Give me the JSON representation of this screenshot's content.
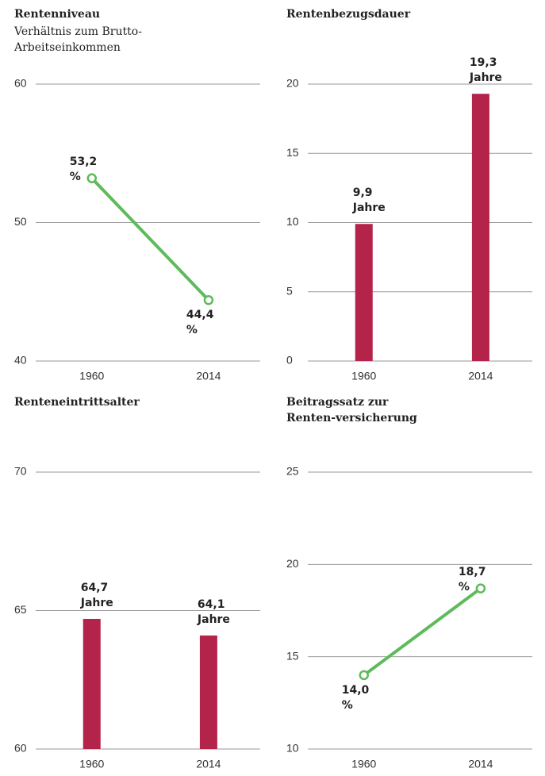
{
  "chart_data": [
    {
      "type": "line",
      "title": "Rentenniveau",
      "subtitle": "Verhältnis zum Brutto-Arbeitseinkommen",
      "categories": [
        "1960",
        "2014"
      ],
      "values": [
        53.2,
        44.4
      ],
      "value_labels": [
        "53,2 %",
        "44,4 %"
      ],
      "color": "#5dbb5a",
      "ylim": [
        40,
        60
      ],
      "yticks": [
        40,
        50,
        60
      ],
      "grid": true
    },
    {
      "type": "bar",
      "title": "Rentenbezugsdauer",
      "categories": [
        "1960",
        "2014"
      ],
      "values": [
        9.9,
        19.3
      ],
      "value_labels": [
        "9,9 Jahre",
        "19,3 Jahre"
      ],
      "color": "#b3234a",
      "ylim": [
        0,
        20
      ],
      "yticks": [
        0,
        5,
        10,
        15,
        20
      ],
      "grid": true
    },
    {
      "type": "bar",
      "title": "Renteneintrittsalter",
      "categories": [
        "1960",
        "2014"
      ],
      "values": [
        64.7,
        64.1
      ],
      "value_labels": [
        "64,7 Jahre",
        "64,1 Jahre"
      ],
      "color": "#b3234a",
      "ylim": [
        60,
        70
      ],
      "yticks": [
        60,
        65,
        70
      ],
      "grid": true
    },
    {
      "type": "line",
      "title": "Beitragssatz zur Renten-versicherung",
      "categories": [
        "1960",
        "2014"
      ],
      "values": [
        14.0,
        18.7
      ],
      "value_labels": [
        "14,0 %",
        "18,7 %"
      ],
      "color": "#5dbb5a",
      "ylim": [
        10,
        25
      ],
      "yticks": [
        10,
        15,
        20,
        25
      ],
      "grid": true
    }
  ]
}
